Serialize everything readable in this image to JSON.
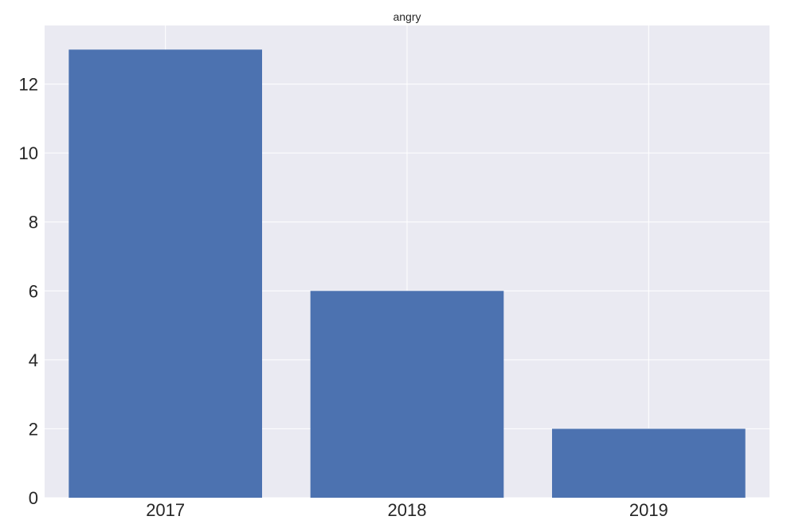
{
  "chart_data": {
    "type": "bar",
    "title": "angry",
    "xlabel": "",
    "ylabel": "",
    "categories": [
      "2017",
      "2018",
      "2019"
    ],
    "values": [
      13,
      6,
      2
    ],
    "ylim": [
      0,
      13.7
    ],
    "yticks": [
      0,
      2,
      4,
      6,
      8,
      10,
      12
    ],
    "ytick_labels": [
      "0",
      "2",
      "4",
      "6",
      "8",
      "10",
      "12"
    ],
    "grid": true,
    "legend": "none",
    "colors": {
      "bar": "#4c72b0",
      "plot_background": "#eaeaf2",
      "grid": "#ffffff",
      "text": "#262626"
    }
  }
}
